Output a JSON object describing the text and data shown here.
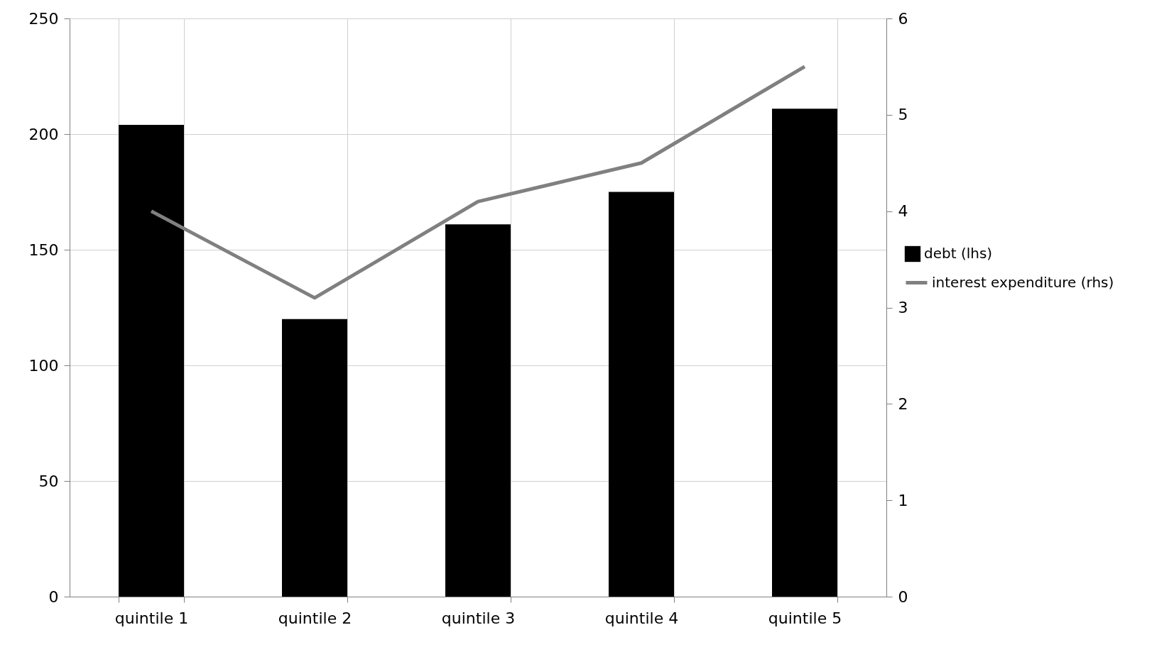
{
  "chart_data": {
    "type": "bar",
    "categories": [
      "quintile 1",
      "quintile 2",
      "quintile 3",
      "quintile 4",
      "quintile 5"
    ],
    "series": [
      {
        "name": "debt (lhs)",
        "color": "#000000",
        "values": [
          204,
          120,
          161,
          175,
          211
        ]
      },
      {
        "name": "interest expenditure (rhs)",
        "type": "line",
        "axis": "y2",
        "color": "#808080",
        "values": [
          4.0,
          3.1,
          4.1,
          4.5,
          5.5
        ]
      }
    ],
    "ylim": [
      0,
      250
    ],
    "yticks": [
      0,
      50,
      100,
      150,
      200,
      250
    ],
    "y2lim": [
      0,
      6
    ],
    "y2ticks": [
      0,
      1,
      2,
      3,
      4,
      5,
      6
    ],
    "grid": true,
    "legend": "right",
    "marker": "none",
    "line_style": "solid"
  }
}
